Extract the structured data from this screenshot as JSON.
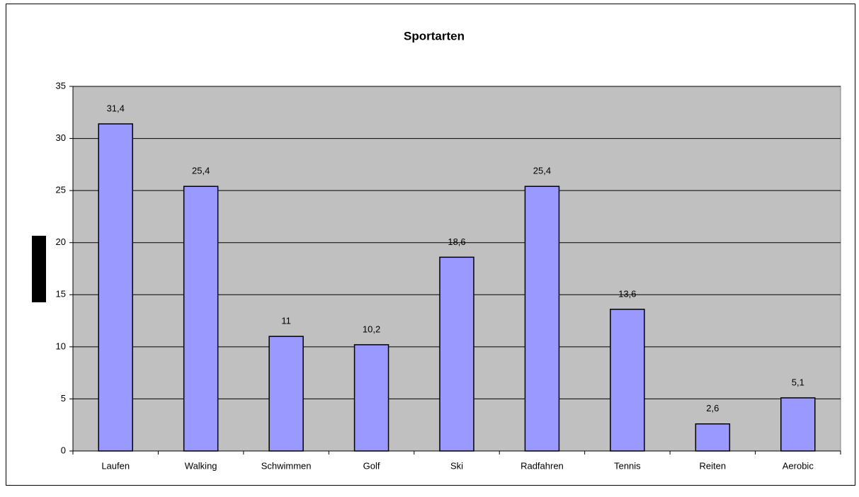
{
  "chart_data": {
    "type": "bar",
    "title": "Sportarten",
    "categories": [
      "Laufen",
      "Walking",
      "Schwimmen",
      "Golf",
      "Ski",
      "Radfahren",
      "Tennis",
      "Reiten",
      "Aerobic"
    ],
    "values": [
      31.4,
      25.4,
      11,
      10.2,
      18.6,
      25.4,
      13.6,
      2.6,
      5.1
    ],
    "value_labels": [
      "31,4",
      "25,4",
      "11",
      "10,2",
      "18,6",
      "25,4",
      "13,6",
      "2,6",
      "5,1"
    ],
    "color": "#9999ff",
    "ylim": [
      0,
      35
    ],
    "yticks": [
      0,
      5,
      10,
      15,
      20,
      25,
      30,
      35
    ],
    "grid": true
  }
}
